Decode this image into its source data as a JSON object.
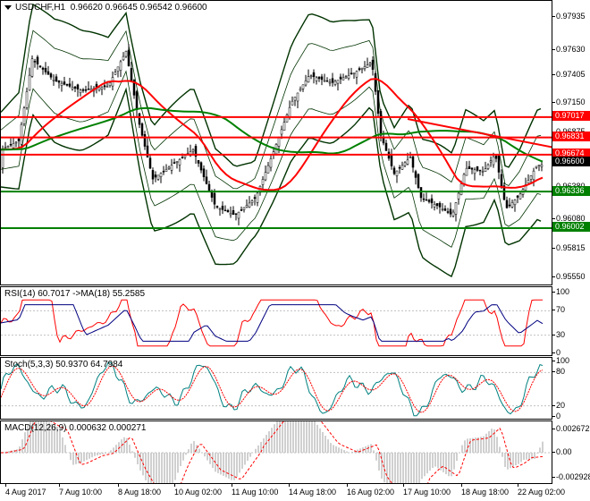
{
  "main": {
    "header": {
      "symbol": "USDCHF,H1",
      "values": "0.96620 0.96645 0.96542 0.96600"
    },
    "ticks": [
      "0.97935",
      "0.97630",
      "0.97405",
      "0.97150",
      "0.96875",
      "0.96380",
      "0.96080",
      "0.95815",
      "0.95550"
    ],
    "levels": [
      {
        "label": "0.97017",
        "value": 0.97017,
        "color": "#ff0000",
        "text_color": "#ffffff"
      },
      {
        "label": "0.96831",
        "value": 0.96831,
        "color": "#ff0000",
        "text_color": "#ffffff"
      },
      {
        "label": "0.96674",
        "value": 0.96674,
        "color": "#ff0000",
        "text_color": "#ffffff"
      },
      {
        "label": "0.96600",
        "value": 0.966,
        "color": "#000000",
        "text_color": "#ffffff"
      },
      {
        "label": "0.96336",
        "value": 0.96336,
        "color": "#008000",
        "text_color": "#ffffff"
      },
      {
        "label": "0.96002",
        "value": 0.96002,
        "color": "#008000",
        "text_color": "#ffffff"
      }
    ]
  },
  "rsi": {
    "label": "RSI(14) 60.7017 ->MA(18) 55.2585",
    "ticks": [
      "100",
      "70",
      "30",
      "0"
    ]
  },
  "stoch": {
    "label": "Stoch(5,3,3) 50.9370 64.7984",
    "ticks": [
      "100",
      "80",
      "20",
      "0"
    ]
  },
  "macd": {
    "label": "MACD(12,26,9) 0.000632 0.000271",
    "ticks": [
      "0.002672",
      "0.00",
      "-0.002928"
    ]
  },
  "xaxis": [
    "4 Aug 2017",
    "7 Aug 10:00",
    "8 Aug 18:00",
    "10 Aug 02:00",
    "11 Aug 10:00",
    "14 Aug 18:00",
    "16 Aug 02:00",
    "17 Aug 10:00",
    "18 Aug 18:00",
    "22 Aug 02:00"
  ],
  "colors": {
    "bull": "#000000",
    "ma_red": "#ff0000",
    "ma_green": "#008000",
    "bands": "#003300",
    "rsi_line": "#000080",
    "stoch_main": "#008080",
    "stoch_signal": "#ff0000",
    "macd_hist": "#c0c0c0",
    "macd_signal": "#ff0000"
  }
}
